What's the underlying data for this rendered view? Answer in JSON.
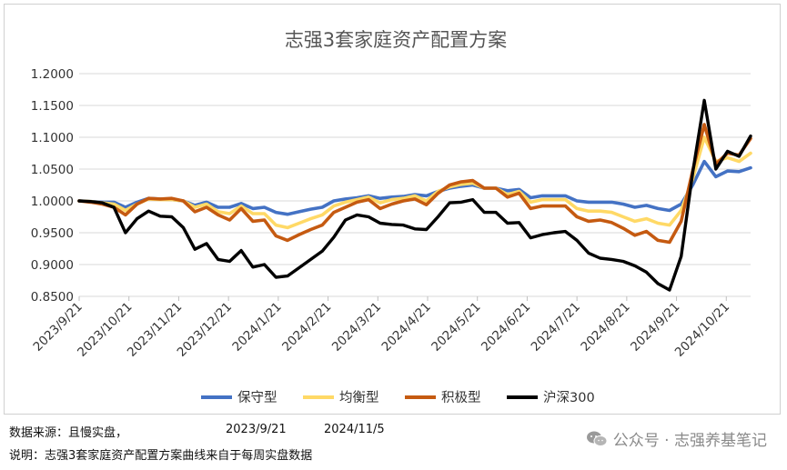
{
  "chart_data": {
    "type": "line",
    "title": "志强3套家庭资产配置方案",
    "xlabel": "",
    "ylabel": "",
    "ylim": [
      0.85,
      1.2
    ],
    "yticks": [
      "0.8500",
      "0.9000",
      "0.9500",
      "1.0000",
      "1.0500",
      "1.1000",
      "1.1500",
      "1.2000"
    ],
    "xticks": [
      "2023/9/21",
      "2023/10/21",
      "2023/11/21",
      "2023/12/21",
      "2024/1/21",
      "2024/2/21",
      "2024/3/21",
      "2024/4/21",
      "2024/5/21",
      "2024/6/21",
      "2024/7/21",
      "2024/8/21",
      "2024/9/21",
      "2024/10/21"
    ],
    "grid": "horizontal",
    "legend_position": "bottom",
    "series": [
      {
        "name": "保守型",
        "color": "#4472c4",
        "values": [
          1.0,
          0.999,
          0.998,
          0.998,
          0.99,
          0.998,
          1.004,
          1.003,
          1.002,
          1.0,
          0.993,
          0.998,
          0.99,
          0.99,
          0.996,
          0.988,
          0.99,
          0.982,
          0.979,
          0.983,
          0.987,
          0.99,
          1.0,
          1.003,
          1.005,
          1.008,
          1.004,
          1.006,
          1.007,
          1.01,
          1.008,
          1.015,
          1.02,
          1.023,
          1.025,
          1.02,
          1.02,
          1.016,
          1.018,
          1.005,
          1.008,
          1.008,
          1.008,
          1.0,
          0.998,
          0.998,
          0.998,
          0.995,
          0.99,
          0.993,
          0.988,
          0.985,
          0.995,
          1.025,
          1.062,
          1.038,
          1.047,
          1.046,
          1.052
        ]
      },
      {
        "name": "均衡型",
        "color": "#ffd966",
        "values": [
          1.0,
          0.999,
          0.997,
          0.995,
          0.985,
          0.995,
          1.003,
          1.002,
          1.002,
          1.0,
          0.99,
          0.995,
          0.983,
          0.98,
          0.992,
          0.98,
          0.98,
          0.962,
          0.958,
          0.965,
          0.972,
          0.978,
          0.992,
          0.998,
          1.002,
          1.006,
          0.997,
          1.002,
          1.004,
          1.008,
          1.0,
          1.015,
          1.022,
          1.026,
          1.028,
          1.02,
          1.02,
          1.01,
          1.015,
          0.998,
          1.002,
          1.002,
          1.002,
          0.988,
          0.984,
          0.984,
          0.982,
          0.975,
          0.968,
          0.972,
          0.965,
          0.962,
          0.985,
          1.035,
          1.1,
          1.062,
          1.068,
          1.062,
          1.075
        ]
      },
      {
        "name": "积极型",
        "color": "#c55a11",
        "values": [
          1.0,
          0.998,
          0.995,
          0.99,
          0.978,
          0.995,
          1.004,
          1.003,
          1.004,
          1.0,
          0.983,
          0.99,
          0.978,
          0.97,
          0.988,
          0.968,
          0.97,
          0.945,
          0.938,
          0.947,
          0.955,
          0.962,
          0.982,
          0.99,
          0.998,
          1.002,
          0.988,
          0.995,
          1.0,
          1.003,
          0.994,
          1.012,
          1.025,
          1.03,
          1.032,
          1.02,
          1.02,
          1.006,
          1.012,
          0.988,
          0.992,
          0.992,
          0.992,
          0.975,
          0.968,
          0.97,
          0.966,
          0.957,
          0.946,
          0.952,
          0.938,
          0.935,
          0.968,
          1.048,
          1.12,
          1.058,
          1.075,
          1.072,
          1.098
        ]
      },
      {
        "name": "沪深300",
        "color": "#000000",
        "values": [
          1.0,
          0.999,
          0.997,
          0.99,
          0.95,
          0.972,
          0.984,
          0.976,
          0.975,
          0.958,
          0.924,
          0.933,
          0.908,
          0.905,
          0.922,
          0.896,
          0.9,
          0.88,
          0.882,
          0.895,
          0.908,
          0.921,
          0.943,
          0.97,
          0.978,
          0.975,
          0.965,
          0.963,
          0.962,
          0.956,
          0.955,
          0.975,
          0.997,
          0.998,
          1.002,
          0.982,
          0.982,
          0.965,
          0.966,
          0.942,
          0.947,
          0.95,
          0.952,
          0.938,
          0.918,
          0.91,
          0.908,
          0.905,
          0.898,
          0.888,
          0.87,
          0.86,
          0.913,
          1.045,
          1.158,
          1.05,
          1.078,
          1.07,
          1.102
        ]
      }
    ]
  },
  "footer": {
    "source_label": "数据来源：且慢实盘，",
    "start_date": "2023/9/21",
    "end_date": "2024/11/5",
    "note": "说明：志强3套家庭资产配置方案曲线来自于每周实盘数据"
  },
  "watermark": {
    "text": "公众号 · 志强养基笔记",
    "icon": "wechat-icon"
  }
}
